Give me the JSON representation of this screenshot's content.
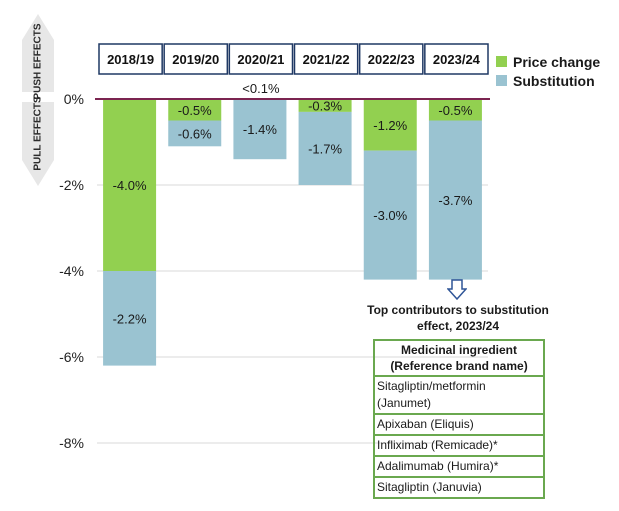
{
  "side_labels": {
    "push": "PUSH EFFECTS",
    "pull": "PULL EFFECTS"
  },
  "legend": [
    {
      "name": "Price change",
      "color": "#92d050"
    },
    {
      "name": "Substitution",
      "color": "#9ac3d1"
    }
  ],
  "annotation": "<0.1%",
  "contributors": {
    "title": "Top contributors to substitution effect, 2023/24",
    "header": "Medicinal ingredient (Reference brand name)",
    "rows": [
      "Sitagliptin/metformin (Janumet)",
      "Apixaban (Eliquis)",
      "Infliximab (Remicade)*",
      "Adalimumab (Humira)*",
      "Sitagliptin (Januvia)"
    ]
  },
  "chart_data": {
    "type": "bar",
    "stacked": true,
    "categories": [
      "2018/19",
      "2019/20",
      "2020/21",
      "2021/22",
      "2022/23",
      "2023/24"
    ],
    "series": [
      {
        "name": "Price change",
        "color": "#92d050",
        "values": [
          -4.0,
          -0.5,
          0.0,
          -0.3,
          -1.2,
          -0.5
        ],
        "labels": [
          "-4.0%",
          "-0.5%",
          "",
          "-0.3%",
          "-1.2%",
          "-0.5%"
        ]
      },
      {
        "name": "Substitution",
        "color": "#9ac3d1",
        "values": [
          -2.2,
          -0.6,
          -1.4,
          -1.7,
          -3.0,
          -3.7
        ],
        "labels": [
          "-2.2%",
          "-0.6%",
          "-1.4%",
          "-1.7%",
          "-3.0%",
          "-3.7%"
        ]
      }
    ],
    "yticks": [
      0,
      -2,
      -4,
      -6,
      -8
    ],
    "ytick_labels": [
      "0%",
      "-2%",
      "-4%",
      "-6%",
      "-8%"
    ],
    "ylim": [
      -8,
      0
    ],
    "grid": true,
    "legend_position": "top-right"
  }
}
